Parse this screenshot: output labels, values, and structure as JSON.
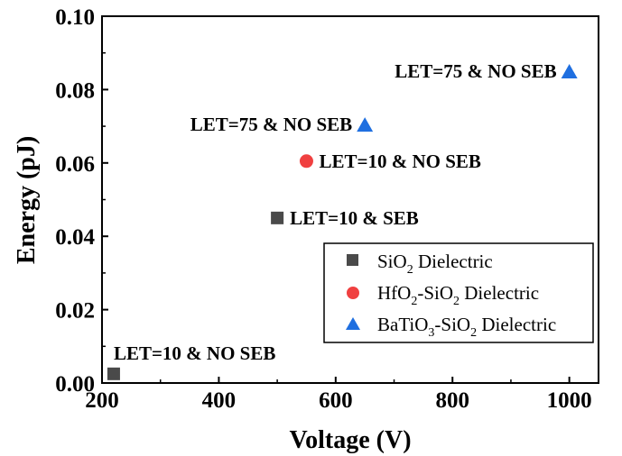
{
  "chart_data": {
    "type": "scatter",
    "xlabel": "Voltage (V)",
    "ylabel": "Energy (pJ)",
    "xlim": [
      200,
      1050
    ],
    "ylim": [
      0,
      0.1
    ],
    "xticks": [
      "200",
      "400",
      "600",
      "800",
      "1000"
    ],
    "yticks": [
      "0.00",
      "0.02",
      "0.04",
      "0.06",
      "0.08",
      "0.10"
    ],
    "grid": false,
    "legend_position": "bottom-right",
    "series": [
      {
        "name": "SiO2 Dielectric",
        "name_base": "SiO",
        "name_sub": "2",
        "name_rest": " Dielectric",
        "marker": "square",
        "color": "#4a4a4a",
        "points": [
          {
            "x": 220,
            "y": 0.0025,
            "label": "LET=10 & NO SEB"
          },
          {
            "x": 500,
            "y": 0.045,
            "label": "LET=10 & SEB"
          }
        ]
      },
      {
        "name": "HfO2-SiO2 Dielectric",
        "name_parts": [
          "HfO",
          "2",
          "-SiO",
          "2",
          " Dielectric"
        ],
        "marker": "circle",
        "color": "#f04040",
        "points": [
          {
            "x": 550,
            "y": 0.0605,
            "label": "LET=10 & NO SEB"
          }
        ]
      },
      {
        "name": "BaTiO3-SiO2 Dielectric",
        "name_parts": [
          "BaTiO",
          "3",
          "-SiO",
          "2",
          " Dielectric"
        ],
        "marker": "triangle",
        "color": "#1f6fe0",
        "points": [
          {
            "x": 650,
            "y": 0.0705,
            "label": "LET=75 & NO SEB"
          },
          {
            "x": 1000,
            "y": 0.085,
            "label": "LET=75 & NO SEB"
          }
        ]
      }
    ]
  }
}
